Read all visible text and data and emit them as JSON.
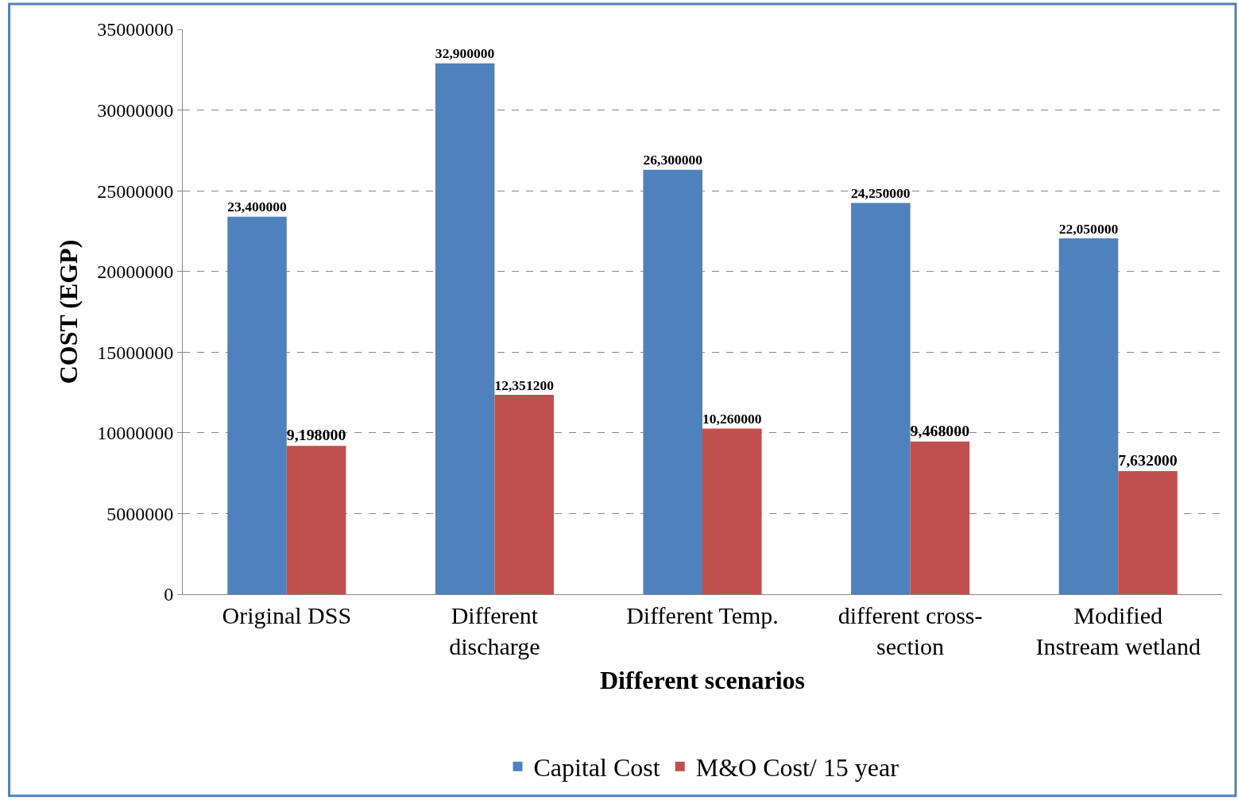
{
  "chart_data": {
    "type": "bar",
    "xlabel": "Different scenarios",
    "ylabel": "COST (EGP)",
    "categories": [
      "Original DSS",
      "Different discharge",
      "Different Temp.",
      "different cross-section",
      "Modified Instream wetland"
    ],
    "series": [
      {
        "name": "Capital Cost",
        "color": "#4f81bd",
        "values": [
          23400000,
          32900000,
          26300000,
          24250000,
          22050000
        ],
        "value_labels": [
          "23,400000",
          "32,900000",
          "26,300000",
          "24,250000",
          "22,050000"
        ]
      },
      {
        "name": "M&O Cost/ 15 year",
        "color": "#c0504d",
        "values": [
          9198000,
          12351200,
          10260000,
          9468000,
          7632000
        ],
        "value_labels": [
          "9,198000",
          "12,351200",
          "10,260000",
          "9,468000",
          "7,632000"
        ]
      }
    ],
    "ylim": [
      0,
      35000000
    ],
    "yticks": [
      0,
      5000000,
      10000000,
      15000000,
      20000000,
      25000000,
      30000000,
      35000000
    ],
    "grid": "y",
    "legend": "bottom"
  }
}
